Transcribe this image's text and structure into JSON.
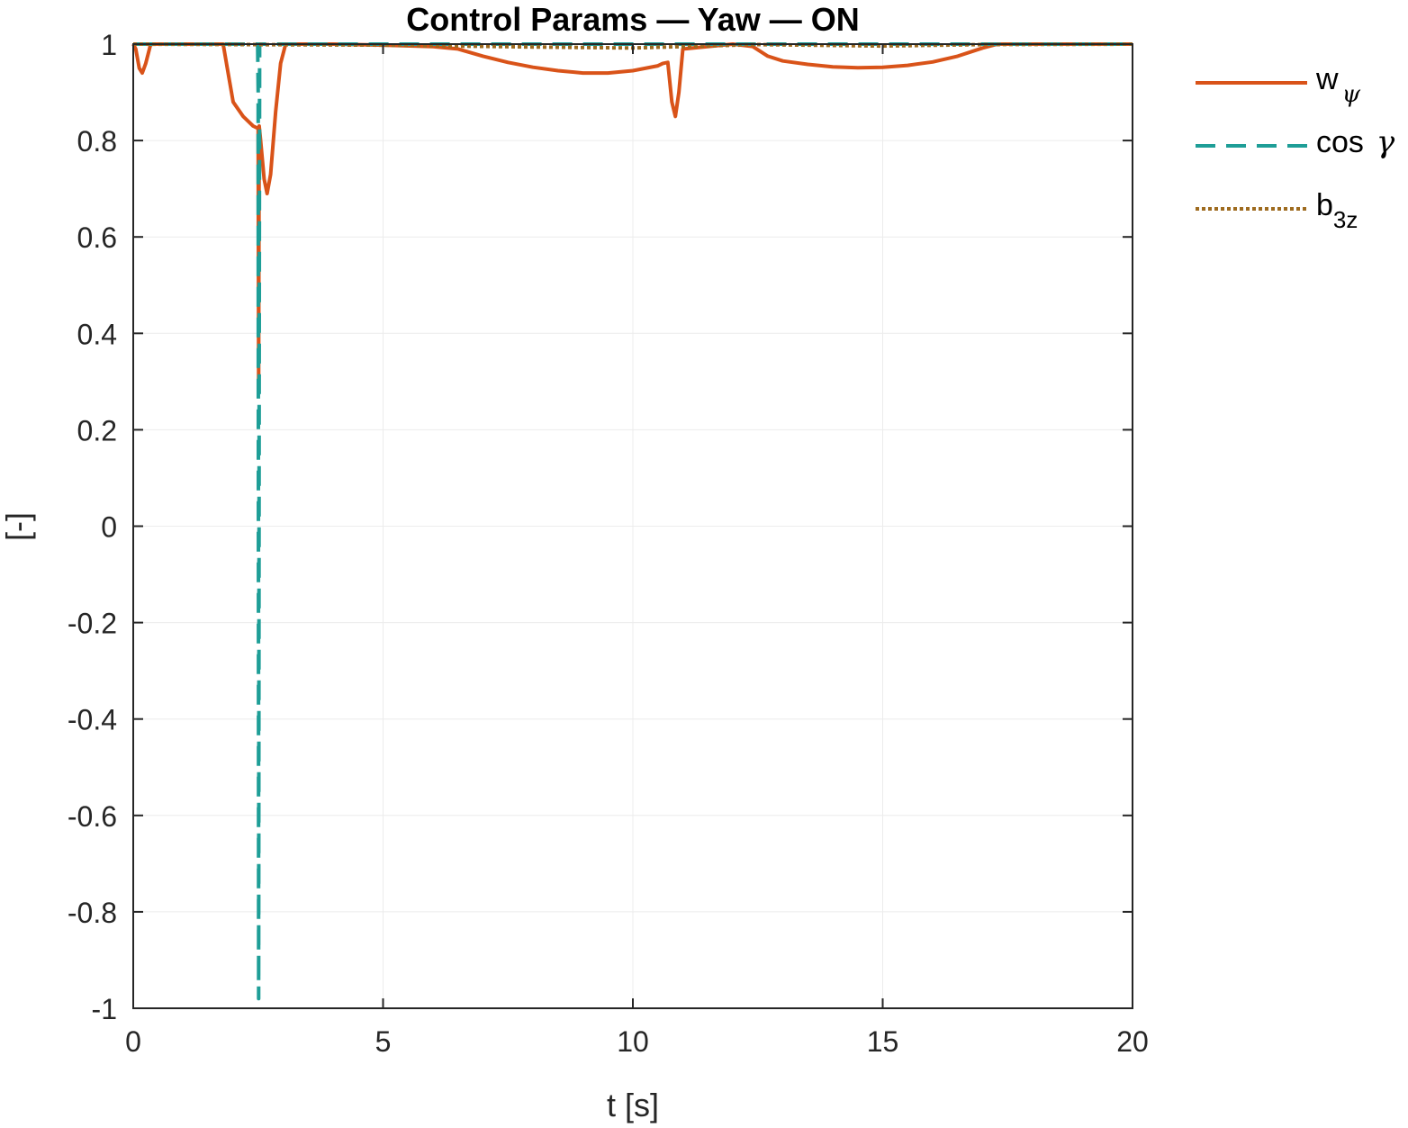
{
  "chart_data": {
    "type": "line",
    "title": "Control Params — Yaw — ON",
    "xlabel": "t [s]",
    "ylabel": "[-]",
    "xlim": [
      0,
      20
    ],
    "ylim": [
      -1,
      1
    ],
    "xticks": [
      0,
      5,
      10,
      15,
      20
    ],
    "yticks": [
      -1,
      -0.8,
      -0.6,
      -0.4,
      -0.2,
      0,
      0.2,
      0.4,
      0.6,
      0.8,
      1
    ],
    "xtick_labels": [
      "0",
      "5",
      "10",
      "15",
      "20"
    ],
    "ytick_labels": [
      "-1",
      "-0.8",
      "-0.6",
      "-0.4",
      "-0.2",
      "0",
      "0.2",
      "0.4",
      "0.6",
      "0.8",
      "1"
    ],
    "grid": true,
    "legend_position": "outside-top-right",
    "series": [
      {
        "name": "w",
        "name_sub": "ψ",
        "color": "#D95319",
        "style": "solid",
        "x": [
          0,
          0.05,
          0.12,
          0.18,
          0.25,
          0.35,
          1.8,
          1.9,
          2.0,
          2.2,
          2.4,
          2.5,
          2.51,
          2.52,
          2.55,
          2.62,
          2.68,
          2.75,
          2.85,
          2.95,
          3.05,
          3.2,
          4.0,
          5.0,
          6.0,
          6.5,
          7.0,
          7.5,
          8.0,
          8.5,
          9.0,
          9.5,
          10.0,
          10.5,
          10.6,
          10.7,
          10.78,
          10.85,
          10.92,
          11.0,
          12.0,
          12.4,
          12.7,
          13.0,
          13.5,
          14.0,
          14.5,
          15.0,
          15.5,
          16.0,
          16.5,
          17.0,
          17.3,
          18.0,
          19.0,
          20.0
        ],
        "y": [
          1.0,
          0.99,
          0.95,
          0.94,
          0.96,
          1.0,
          1.0,
          0.94,
          0.88,
          0.85,
          0.83,
          0.825,
          0.3,
          0.83,
          0.8,
          0.72,
          0.69,
          0.73,
          0.86,
          0.96,
          1.0,
          1.0,
          1.0,
          0.998,
          0.995,
          0.99,
          0.975,
          0.962,
          0.952,
          0.945,
          0.94,
          0.94,
          0.945,
          0.955,
          0.96,
          0.962,
          0.88,
          0.85,
          0.9,
          0.99,
          1.0,
          0.995,
          0.975,
          0.965,
          0.958,
          0.953,
          0.951,
          0.952,
          0.956,
          0.963,
          0.975,
          0.992,
          1.0,
          1.0,
          1.0,
          1.0
        ]
      },
      {
        "name": "cos",
        "name_sub": "γ",
        "color": "#1E9E97",
        "style": "dashed",
        "x": [
          0,
          2.49,
          2.5,
          2.51,
          2.52,
          2.53,
          3.0,
          20.0
        ],
        "y": [
          1.0,
          1.0,
          0.9,
          -0.98,
          0.3,
          1.0,
          1.0,
          1.0
        ]
      },
      {
        "name": "b",
        "name_sub": "3z",
        "color": "#9E6B1F",
        "style": "dotted",
        "x": [
          0,
          5.0,
          8.0,
          10.0,
          11.0,
          12.5,
          15.0,
          17.0,
          20.0
        ],
        "y": [
          1.0,
          0.998,
          0.994,
          0.992,
          0.995,
          0.999,
          0.996,
          0.999,
          1.0
        ]
      }
    ]
  }
}
